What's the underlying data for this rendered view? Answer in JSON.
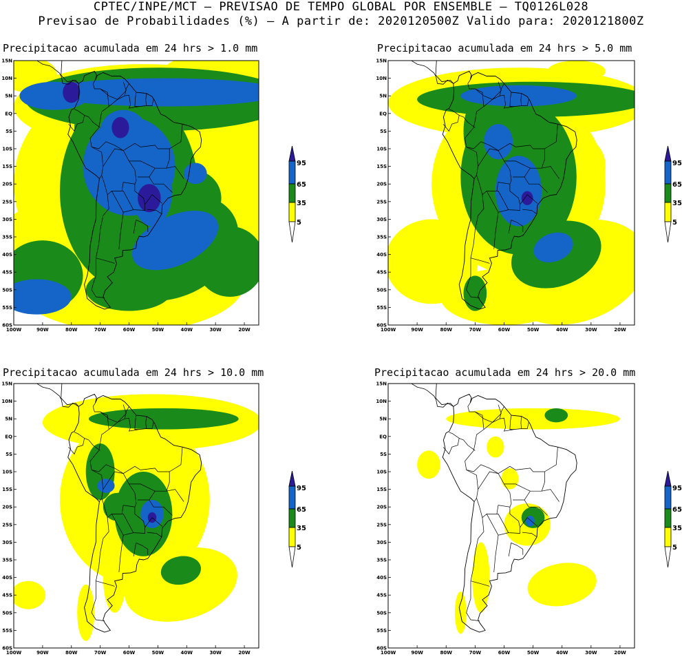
{
  "header": {
    "line1": "CPTEC/INPE/MCT – PREVISAO DE TEMPO GLOBAL POR ENSEMBLE – TQ0126L028",
    "line2": "Previsao de Probabilidades (%) –  A partir de: 2020120500Z  Valido para: 2020121800Z"
  },
  "axes": {
    "lat_labels": [
      "15N",
      "10N",
      "5N",
      "EQ",
      "5S",
      "10S",
      "15S",
      "20S",
      "25S",
      "30S",
      "35S",
      "40S",
      "45S",
      "50S",
      "55S",
      "60S"
    ],
    "lon_labels": [
      "100W",
      "90W",
      "80W",
      "70W",
      "60W",
      "50W",
      "40W",
      "30W",
      "20W"
    ]
  },
  "legend": {
    "ticks": [
      "95",
      "65",
      "35",
      "5"
    ],
    "colors": [
      "#2b1b9b",
      "#1565c8",
      "#1a8a1a",
      "#ffff00",
      "#ffffff"
    ]
  },
  "panels": [
    {
      "title": "Precipitacao acumulada em 24 hrs > 1.0 mm",
      "threshold": "1.0"
    },
    {
      "title": "Precipitacao acumulada em 24 hrs > 5.0 mm",
      "threshold": "5.0"
    },
    {
      "title": "Precipitacao acumulada em 24 hrs > 10.0 mm",
      "threshold": "10.0"
    },
    {
      "title": "Precipitacao acumulada em 24 hrs > 20.0 mm",
      "threshold": "20.0"
    }
  ]
}
